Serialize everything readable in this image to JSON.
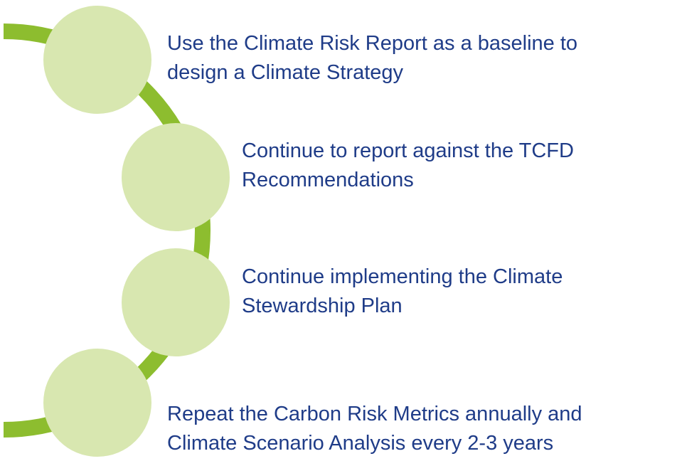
{
  "items": [
    {
      "lines": [
        "Use the Climate Risk Report as a baseline to",
        "design a Climate Strategy"
      ]
    },
    {
      "lines": [
        "Continue to report against the TCFD",
        "Recommendations"
      ]
    },
    {
      "lines": [
        "Continue implementing the Climate",
        "Stewardship Plan"
      ]
    },
    {
      "lines": [
        "Repeat the Carbon Risk Metrics annually and",
        "Climate Scenario Analysis every 2-3 years"
      ]
    }
  ]
}
